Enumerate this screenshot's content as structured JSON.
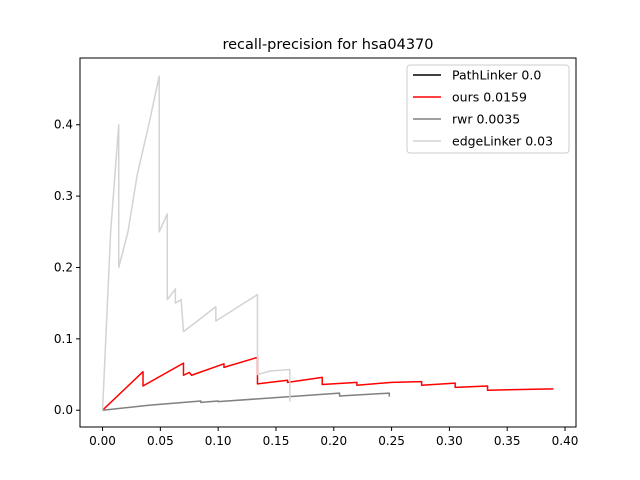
{
  "chart_data": {
    "type": "line",
    "title": "recall-precision for hsa04370",
    "xlabel": "",
    "ylabel": "",
    "xlim": [
      -0.0195,
      0.4095
    ],
    "ylim": [
      -0.0235,
      0.4935
    ],
    "xticks": [
      "0.00",
      "0.05",
      "0.10",
      "0.15",
      "0.20",
      "0.25",
      "0.30",
      "0.35",
      "0.40"
    ],
    "xtick_values": [
      0,
      0.05,
      0.1,
      0.15,
      0.2,
      0.25,
      0.3,
      0.35,
      0.4
    ],
    "yticks": [
      "0.0",
      "0.1",
      "0.2",
      "0.3",
      "0.4"
    ],
    "ytick_values": [
      0,
      0.1,
      0.2,
      0.3,
      0.4
    ],
    "legend_position": "top-right",
    "series": [
      {
        "name": "PathLinker 0.0",
        "color": "#000000",
        "points": [
          [
            0,
            0
          ],
          [
            0,
            0
          ]
        ]
      },
      {
        "name": "ours 0.0159",
        "color": "#ff0000",
        "points": [
          [
            0.0,
            0.0
          ],
          [
            0.035,
            0.054
          ],
          [
            0.035,
            0.034
          ],
          [
            0.07,
            0.066
          ],
          [
            0.07,
            0.049
          ],
          [
            0.075,
            0.053
          ],
          [
            0.077,
            0.049
          ],
          [
            0.105,
            0.065
          ],
          [
            0.105,
            0.06
          ],
          [
            0.134,
            0.074
          ],
          [
            0.134,
            0.037
          ],
          [
            0.16,
            0.042
          ],
          [
            0.16,
            0.039
          ],
          [
            0.19,
            0.046
          ],
          [
            0.19,
            0.036
          ],
          [
            0.22,
            0.039
          ],
          [
            0.22,
            0.035
          ],
          [
            0.25,
            0.039
          ],
          [
            0.276,
            0.04
          ],
          [
            0.276,
            0.035
          ],
          [
            0.305,
            0.038
          ],
          [
            0.305,
            0.032
          ],
          [
            0.333,
            0.034
          ],
          [
            0.333,
            0.028
          ],
          [
            0.39,
            0.03
          ]
        ]
      },
      {
        "name": "rwr 0.0035",
        "color": "#808080",
        "points": [
          [
            0.0,
            0.0
          ],
          [
            0.04,
            0.007
          ],
          [
            0.085,
            0.013
          ],
          [
            0.085,
            0.011
          ],
          [
            0.1,
            0.013
          ],
          [
            0.1,
            0.012
          ],
          [
            0.205,
            0.024
          ],
          [
            0.205,
            0.02
          ],
          [
            0.248,
            0.024
          ],
          [
            0.248,
            0.019
          ]
        ]
      },
      {
        "name": "edgeLinker 0.03",
        "color": "#d3d3d3",
        "points": [
          [
            0.0,
            0.0
          ],
          [
            0.007,
            0.25
          ],
          [
            0.014,
            0.4
          ],
          [
            0.014,
            0.2
          ],
          [
            0.022,
            0.25
          ],
          [
            0.03,
            0.33
          ],
          [
            0.04,
            0.4
          ],
          [
            0.049,
            0.468
          ],
          [
            0.049,
            0.25
          ],
          [
            0.056,
            0.275
          ],
          [
            0.056,
            0.155
          ],
          [
            0.063,
            0.17
          ],
          [
            0.063,
            0.15
          ],
          [
            0.068,
            0.155
          ],
          [
            0.07,
            0.11
          ],
          [
            0.09,
            0.135
          ],
          [
            0.098,
            0.145
          ],
          [
            0.098,
            0.125
          ],
          [
            0.134,
            0.162
          ],
          [
            0.134,
            0.05
          ],
          [
            0.145,
            0.055
          ],
          [
            0.162,
            0.057
          ],
          [
            0.162,
            0.012
          ]
        ]
      }
    ]
  }
}
